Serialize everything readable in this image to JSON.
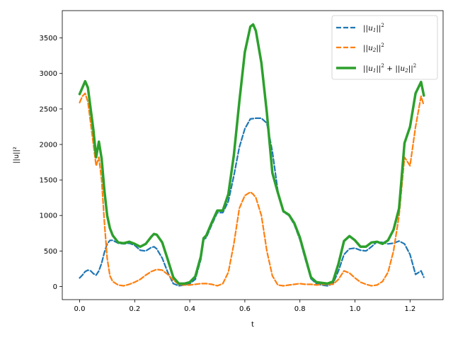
{
  "chart_data": {
    "type": "line",
    "xlabel": "t",
    "ylabel": "||u||²",
    "xlim": [
      -0.063,
      1.32
    ],
    "ylim": [
      -185,
      3885
    ],
    "xticks": [
      0.0,
      0.2,
      0.4,
      0.6,
      0.8,
      1.0,
      1.2
    ],
    "xtick_labels": [
      "0.0",
      "0.2",
      "0.4",
      "0.6",
      "0.8",
      "1.0",
      "1.2"
    ],
    "yticks": [
      0,
      500,
      1000,
      1500,
      2000,
      2500,
      3000,
      3500
    ],
    "ytick_labels": [
      "0",
      "500",
      "1000",
      "1500",
      "2000",
      "2500",
      "3000",
      "3500"
    ],
    "legend_position": "upper right",
    "series": [
      {
        "name": "||u1||^2",
        "color": "#1f77b4",
        "style": "dashed",
        "x": [
          0.0,
          0.01,
          0.02,
          0.03,
          0.04,
          0.05,
          0.06,
          0.07,
          0.08,
          0.09,
          0.1,
          0.11,
          0.12,
          0.14,
          0.16,
          0.18,
          0.2,
          0.22,
          0.24,
          0.26,
          0.27,
          0.28,
          0.3,
          0.32,
          0.34,
          0.36,
          0.38,
          0.4,
          0.42,
          0.44,
          0.45,
          0.46,
          0.48,
          0.5,
          0.52,
          0.54,
          0.56,
          0.58,
          0.6,
          0.62,
          0.64,
          0.66,
          0.68,
          0.7,
          0.72,
          0.74,
          0.76,
          0.78,
          0.8,
          0.82,
          0.84,
          0.86,
          0.88,
          0.9,
          0.92,
          0.94,
          0.96,
          0.98,
          1.0,
          1.02,
          1.04,
          1.06,
          1.08,
          1.1,
          1.12,
          1.14,
          1.16,
          1.18,
          1.2,
          1.22,
          1.24,
          1.25
        ],
        "y": [
          120,
          160,
          210,
          230,
          220,
          180,
          160,
          220,
          330,
          480,
          600,
          650,
          650,
          610,
          600,
          610,
          580,
          510,
          500,
          550,
          560,
          530,
          400,
          200,
          40,
          10,
          20,
          40,
          100,
          380,
          660,
          690,
          870,
          1040,
          1040,
          1200,
          1560,
          1960,
          2220,
          2360,
          2370,
          2370,
          2300,
          1900,
          1340,
          1050,
          1000,
          870,
          660,
          380,
          110,
          40,
          20,
          10,
          40,
          220,
          450,
          530,
          540,
          510,
          500,
          560,
          630,
          620,
          600,
          610,
          640,
          600,
          450,
          170,
          220,
          130
        ]
      },
      {
        "name": "||u2||^2",
        "color": "#ff7f0e",
        "style": "dashed",
        "x": [
          0.0,
          0.01,
          0.02,
          0.03,
          0.04,
          0.05,
          0.06,
          0.07,
          0.08,
          0.09,
          0.1,
          0.11,
          0.12,
          0.14,
          0.16,
          0.18,
          0.2,
          0.22,
          0.24,
          0.26,
          0.28,
          0.3,
          0.32,
          0.34,
          0.36,
          0.38,
          0.4,
          0.42,
          0.44,
          0.46,
          0.48,
          0.5,
          0.52,
          0.54,
          0.56,
          0.58,
          0.6,
          0.62,
          0.63,
          0.64,
          0.66,
          0.68,
          0.7,
          0.72,
          0.74,
          0.76,
          0.78,
          0.8,
          0.82,
          0.84,
          0.86,
          0.88,
          0.9,
          0.92,
          0.94,
          0.96,
          0.98,
          1.0,
          1.02,
          1.04,
          1.06,
          1.08,
          1.1,
          1.12,
          1.14,
          1.16,
          1.18,
          1.2,
          1.22,
          1.24,
          1.25
        ],
        "y": [
          2590,
          2680,
          2720,
          2600,
          2300,
          2000,
          1700,
          1820,
          1500,
          900,
          400,
          150,
          70,
          20,
          10,
          30,
          60,
          100,
          160,
          210,
          240,
          230,
          170,
          90,
          30,
          20,
          20,
          30,
          40,
          40,
          30,
          10,
          40,
          200,
          600,
          1100,
          1280,
          1330,
          1300,
          1250,
          1000,
          500,
          150,
          20,
          10,
          20,
          30,
          40,
          30,
          30,
          20,
          30,
          30,
          30,
          100,
          220,
          190,
          120,
          60,
          30,
          10,
          20,
          70,
          200,
          500,
          1000,
          1820,
          1700,
          2250,
          2680,
          2550
        ]
      },
      {
        "name": "||u1||^2 + ||u2||^2",
        "color": "#2ca02c",
        "style": "solid",
        "x": [
          0.0,
          0.01,
          0.02,
          0.03,
          0.04,
          0.05,
          0.06,
          0.07,
          0.08,
          0.09,
          0.1,
          0.11,
          0.12,
          0.14,
          0.16,
          0.18,
          0.2,
          0.22,
          0.24,
          0.26,
          0.27,
          0.28,
          0.3,
          0.32,
          0.34,
          0.36,
          0.38,
          0.4,
          0.42,
          0.44,
          0.45,
          0.46,
          0.48,
          0.5,
          0.52,
          0.54,
          0.56,
          0.58,
          0.6,
          0.62,
          0.63,
          0.64,
          0.66,
          0.68,
          0.7,
          0.72,
          0.74,
          0.76,
          0.78,
          0.8,
          0.82,
          0.84,
          0.86,
          0.88,
          0.9,
          0.92,
          0.94,
          0.96,
          0.98,
          1.0,
          1.02,
          1.04,
          1.06,
          1.08,
          1.1,
          1.12,
          1.14,
          1.16,
          1.18,
          1.2,
          1.22,
          1.24,
          1.25
        ],
        "y": [
          2710,
          2800,
          2890,
          2800,
          2500,
          2200,
          1820,
          2040,
          1800,
          1350,
          1000,
          820,
          720,
          620,
          610,
          630,
          600,
          560,
          600,
          700,
          740,
          730,
          620,
          380,
          130,
          40,
          40,
          60,
          140,
          420,
          680,
          720,
          900,
          1070,
          1070,
          1300,
          1850,
          2600,
          3300,
          3660,
          3690,
          3600,
          3150,
          2450,
          1600,
          1320,
          1060,
          1010,
          890,
          690,
          410,
          130,
          60,
          50,
          40,
          70,
          320,
          640,
          710,
          650,
          560,
          560,
          620,
          630,
          600,
          650,
          800,
          1100,
          2020,
          2250,
          2720,
          2880,
          2690
        ]
      }
    ]
  }
}
